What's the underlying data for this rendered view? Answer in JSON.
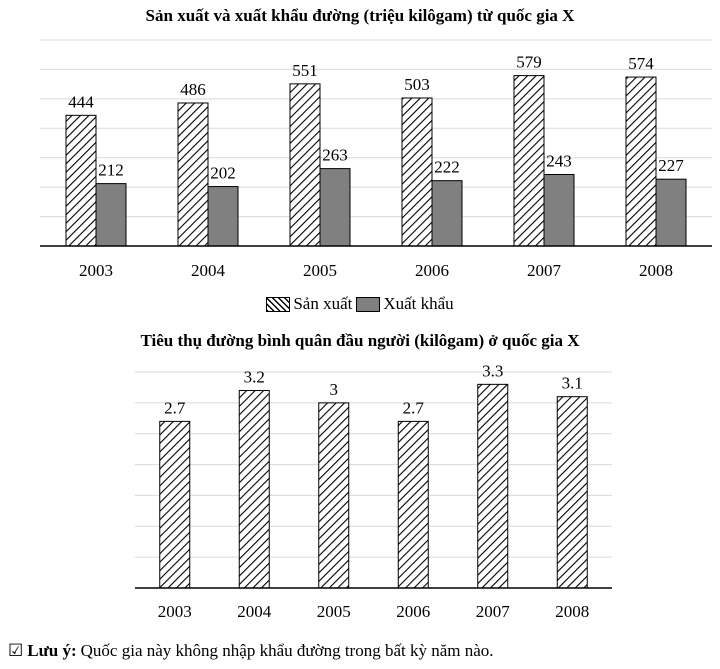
{
  "chart_data": [
    {
      "type": "bar",
      "title": "Sản xuất và xuất khẩu đường (triệu kilôgam) từ quốc gia X",
      "categories": [
        "2003",
        "2004",
        "2005",
        "2006",
        "2007",
        "2008"
      ],
      "series": [
        {
          "name": "Sản xuất",
          "values": [
            444,
            486,
            551,
            503,
            579,
            574
          ],
          "pattern": "hatch"
        },
        {
          "name": "Xuất khẩu",
          "values": [
            212,
            202,
            263,
            222,
            243,
            227
          ],
          "color": "#808080"
        }
      ],
      "ylim": [
        0,
        700
      ],
      "grid": true,
      "legend": "bottom"
    },
    {
      "type": "bar",
      "title": "Tiêu thụ đường bình quân đầu người (kilôgam) ở quốc gia X",
      "categories": [
        "2003",
        "2004",
        "2005",
        "2006",
        "2007",
        "2008"
      ],
      "series": [
        {
          "values": [
            2.7,
            3.2,
            3,
            2.7,
            3.3,
            3.1
          ],
          "pattern": "hatch"
        }
      ],
      "value_labels": [
        "2.7",
        "3.2",
        "3",
        "2.7",
        "3.3",
        "3.1"
      ],
      "ylim": [
        0,
        3.5
      ],
      "grid": true
    }
  ],
  "note": {
    "check_icon": "☑",
    "label": "Lưu ý:",
    "text": "Quốc gia này không nhập khẩu đường trong bất kỳ năm nào."
  }
}
